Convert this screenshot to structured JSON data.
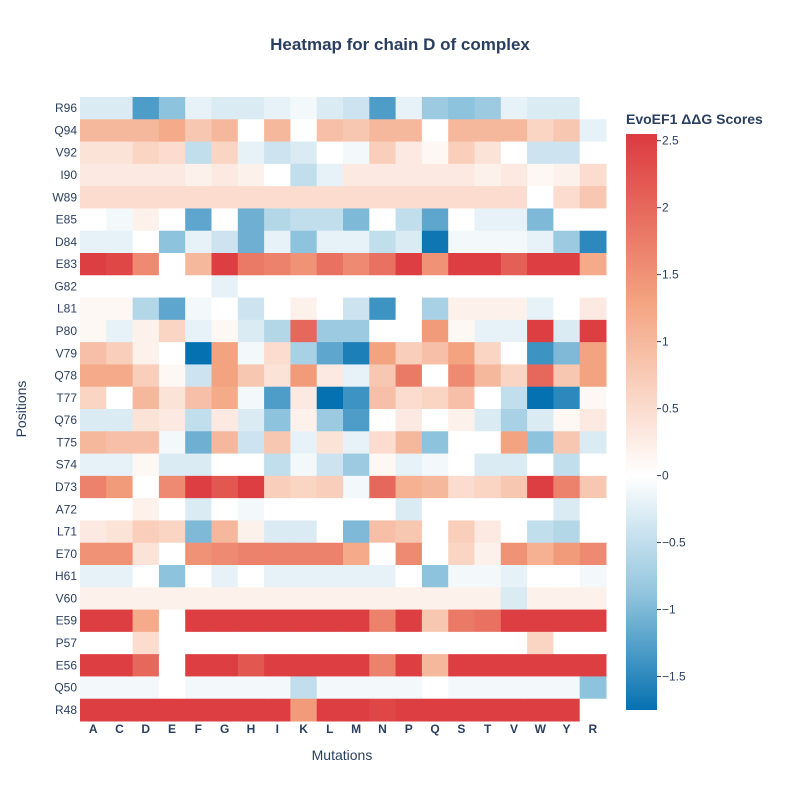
{
  "chart_data": {
    "type": "heatmap",
    "title": "Heatmap for chain D of complex",
    "xlabel": "Mutations",
    "ylabel": "Positions",
    "colorbar_title": "EvoEF1 ΔΔG Scores",
    "zlim": [
      -1.75,
      2.55
    ],
    "colorbar_ticks": [
      2.5,
      2,
      1.5,
      1,
      0.5,
      0,
      -0.5,
      -1,
      -1.5
    ],
    "colorbar_tick_labels": [
      "2.5",
      "2",
      "1.5",
      "1",
      "0.5",
      "0",
      "−0.5",
      "−1",
      "−1.5"
    ],
    "x": [
      "A",
      "C",
      "D",
      "E",
      "F",
      "G",
      "H",
      "I",
      "K",
      "L",
      "M",
      "N",
      "P",
      "Q",
      "S",
      "T",
      "V",
      "W",
      "Y",
      "R"
    ],
    "y": [
      "R96",
      "Q94",
      "V92",
      "I90",
      "W89",
      "E85",
      "D84",
      "E83",
      "G82",
      "L81",
      "P80",
      "V79",
      "Q78",
      "T77",
      "Q76",
      "T75",
      "S74",
      "D73",
      "A72",
      "L71",
      "E70",
      "H61",
      "V60",
      "E59",
      "P57",
      "E56",
      "Q50",
      "R48"
    ],
    "z": [
      [
        -0.3,
        -0.3,
        -1.3,
        -0.9,
        -0.2,
        -0.3,
        -0.3,
        -0.2,
        -0.1,
        -0.3,
        -0.4,
        -1.3,
        -0.2,
        -0.8,
        -0.9,
        -0.8,
        -0.2,
        -0.3,
        -0.3,
        0
      ],
      [
        1.0,
        1.0,
        1.0,
        1.2,
        0.8,
        1.0,
        0,
        1.0,
        0,
        0.9,
        0.8,
        1.0,
        1.0,
        0,
        1.0,
        1.0,
        1.0,
        0.6,
        0.8,
        -0.2
      ],
      [
        0.4,
        0.4,
        0.6,
        0.5,
        -0.5,
        0.6,
        -0.2,
        -0.4,
        -0.3,
        0,
        -0.1,
        0.7,
        0.3,
        0.1,
        0.7,
        0.4,
        0,
        -0.4,
        -0.4,
        0
      ],
      [
        0.3,
        0.3,
        0.3,
        0.3,
        0.2,
        0.3,
        0.2,
        0,
        -0.5,
        -0.2,
        0.3,
        0.3,
        0.3,
        0.3,
        0.3,
        0.2,
        0.3,
        0.1,
        0.2,
        0.5
      ],
      [
        0.5,
        0.5,
        0.5,
        0.5,
        0.5,
        0.5,
        0.5,
        0.5,
        0.5,
        0.5,
        0.5,
        0.5,
        0.5,
        0.5,
        0.5,
        0.5,
        0.5,
        0,
        0.5,
        0.8
      ],
      [
        0,
        -0.1,
        0.2,
        0,
        -1.2,
        0,
        -1.1,
        -0.6,
        -0.5,
        -0.5,
        -1.0,
        0,
        -0.5,
        -1.2,
        0,
        -0.2,
        -0.2,
        -1.0,
        0,
        0
      ],
      [
        -0.2,
        -0.2,
        0,
        -0.9,
        -0.2,
        -0.4,
        -1.1,
        -0.2,
        -0.9,
        -0.2,
        -0.2,
        -0.5,
        -0.3,
        -1.7,
        -0.1,
        -0.1,
        -0.1,
        -0.2,
        -0.8,
        -1.5
      ],
      [
        2.5,
        2.4,
        1.6,
        0,
        1.0,
        2.5,
        1.8,
        1.7,
        1.5,
        1.9,
        1.6,
        1.9,
        2.5,
        1.5,
        2.5,
        2.5,
        2.1,
        2.5,
        2.5,
        1.2
      ],
      [
        0,
        0,
        0,
        0,
        0,
        -0.2,
        0,
        0,
        0,
        0,
        0,
        0,
        0,
        0,
        0,
        0,
        0,
        0,
        0,
        0
      ],
      [
        0.1,
        0.1,
        -0.6,
        -1.2,
        -0.1,
        0,
        -0.4,
        0,
        0.2,
        0,
        -0.4,
        -1.4,
        0,
        -0.7,
        0.2,
        0.2,
        0.2,
        -0.2,
        0,
        0.3
      ],
      [
        0.1,
        -0.2,
        0.2,
        0.6,
        -0.2,
        0.1,
        -0.3,
        -0.6,
        2.0,
        -0.8,
        -0.8,
        0,
        0,
        1.4,
        0.1,
        -0.2,
        -0.2,
        2.5,
        -0.3,
        2.5
      ],
      [
        0.9,
        0.7,
        0.2,
        0,
        -1.8,
        1.3,
        -0.1,
        0.5,
        -0.7,
        -1.2,
        -1.6,
        1.3,
        0.7,
        0.9,
        1.3,
        0.6,
        0,
        -1.4,
        -1.0,
        1.3
      ],
      [
        1.2,
        1.2,
        0.7,
        0.1,
        -0.4,
        1.3,
        0.8,
        0.4,
        1.4,
        0.3,
        -0.2,
        0.8,
        1.8,
        0,
        1.6,
        1.0,
        0.6,
        2.0,
        0.8,
        1.3
      ],
      [
        0.6,
        0,
        1.0,
        0.4,
        0.9,
        1.2,
        -0.1,
        -1.3,
        0.3,
        -1.8,
        -1.4,
        0.9,
        0.5,
        0.6,
        0.9,
        0,
        -0.5,
        -1.8,
        -1.5,
        0.1
      ],
      [
        -0.3,
        -0.3,
        0.4,
        0.3,
        -0.5,
        0.3,
        -0.3,
        -0.9,
        0.2,
        -0.8,
        -1.3,
        0,
        0.3,
        0,
        0.2,
        -0.3,
        -0.7,
        -0.3,
        0.1,
        0.3
      ],
      [
        1.0,
        0.9,
        0.9,
        -0.1,
        -1.1,
        1.0,
        -0.4,
        0.8,
        -0.2,
        0.4,
        -0.2,
        0.5,
        1.0,
        -0.9,
        0,
        0,
        1.3,
        -0.9,
        0.8,
        -0.3
      ],
      [
        -0.2,
        -0.2,
        0.1,
        -0.3,
        -0.3,
        0,
        0,
        -0.5,
        -0.1,
        -0.4,
        -0.8,
        0.1,
        -0.2,
        -0.1,
        0,
        -0.3,
        -0.3,
        0,
        -0.5,
        0
      ],
      [
        1.7,
        1.4,
        0,
        1.6,
        2.5,
        2.2,
        2.5,
        0.7,
        0.6,
        0.7,
        -0.1,
        2.0,
        1.1,
        1.0,
        0.5,
        0.6,
        0.8,
        2.5,
        1.7,
        0.8
      ],
      [
        0,
        0,
        0.2,
        0,
        -0.3,
        0,
        -0.1,
        0,
        0,
        0,
        0,
        0,
        -0.3,
        0,
        0,
        0,
        0,
        0,
        -0.3,
        0
      ],
      [
        0.3,
        0.4,
        0.7,
        0.6,
        -1.0,
        1.0,
        0.2,
        -0.3,
        -0.3,
        0,
        -1.0,
        0.9,
        0.8,
        0,
        0.7,
        0.3,
        0,
        -0.5,
        -0.6,
        0
      ],
      [
        1.5,
        1.5,
        0.4,
        0,
        1.5,
        1.6,
        1.7,
        1.7,
        1.7,
        1.7,
        1.2,
        0,
        1.6,
        0,
        0.6,
        0.2,
        1.5,
        1.1,
        1.4,
        1.6
      ],
      [
        -0.2,
        -0.2,
        0,
        -0.9,
        0,
        -0.2,
        0,
        -0.2,
        -0.2,
        -0.2,
        -0.2,
        -0.2,
        0,
        -0.9,
        -0.1,
        -0.1,
        -0.2,
        0,
        0,
        -0.1
      ],
      [
        0.2,
        0.2,
        0.2,
        0.2,
        0.2,
        0.2,
        0.2,
        0.2,
        0.2,
        0.2,
        0.2,
        0.2,
        0.2,
        0.2,
        0.2,
        0.2,
        -0.3,
        0.2,
        0.2,
        0.2
      ],
      [
        2.5,
        2.5,
        1.2,
        0,
        2.5,
        2.5,
        2.5,
        2.5,
        2.5,
        2.5,
        2.5,
        1.7,
        2.5,
        0.8,
        1.8,
        1.9,
        2.5,
        2.5,
        2.5,
        2.5
      ],
      [
        0,
        0,
        0.5,
        0,
        0,
        0,
        0,
        0,
        0,
        0,
        0,
        0,
        0,
        0,
        0,
        0,
        0,
        0.6,
        0,
        0
      ],
      [
        2.5,
        2.5,
        2.0,
        0,
        2.5,
        2.5,
        2.2,
        2.5,
        2.5,
        2.5,
        2.5,
        1.7,
        2.5,
        1.0,
        2.5,
        2.5,
        2.5,
        2.5,
        2.5,
        2.5
      ],
      [
        -0.1,
        -0.1,
        -0.1,
        0,
        -0.1,
        -0.1,
        -0.1,
        -0.1,
        -0.5,
        -0.1,
        -0.1,
        -0.1,
        -0.1,
        0,
        -0.1,
        -0.1,
        -0.1,
        -0.1,
        -0.1,
        -0.9
      ],
      [
        2.5,
        2.5,
        2.5,
        2.5,
        2.5,
        2.5,
        2.5,
        2.5,
        1.4,
        2.5,
        2.5,
        2.4,
        2.5,
        2.5,
        2.5,
        2.5,
        2.5,
        2.5,
        2.5,
        0
      ]
    ],
    "colorscale": [
      "#0571b0",
      "#92c5de",
      "#ffffff",
      "#f4a582",
      "#dc3a3f"
    ],
    "grid": false,
    "legend": "colorbar-right"
  }
}
